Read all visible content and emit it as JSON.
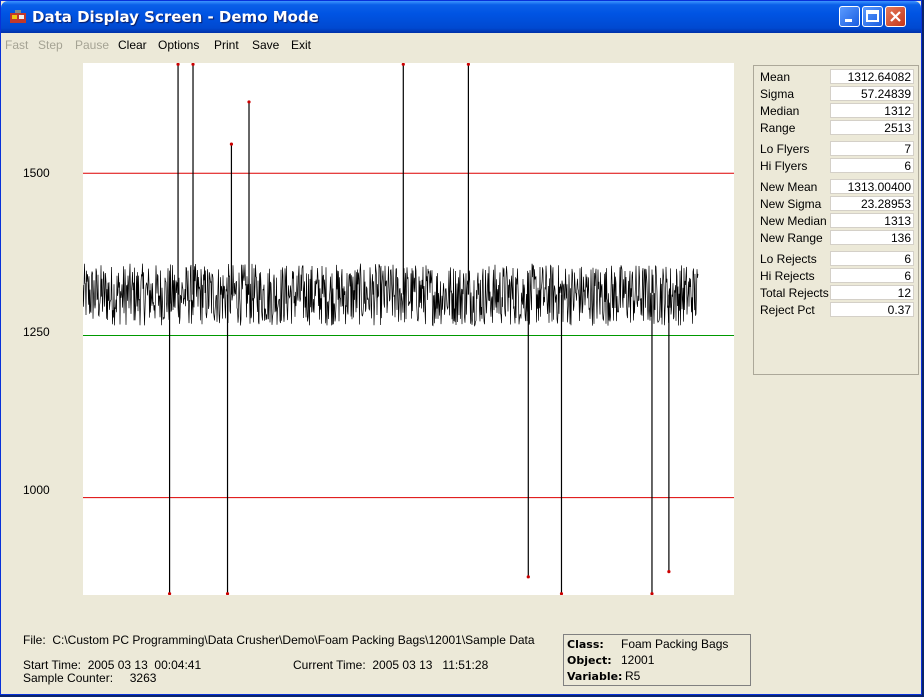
{
  "window": {
    "title": "Data Display Screen - Demo Mode"
  },
  "menu": {
    "fast": "Fast",
    "step": "Step",
    "pause": "Pause",
    "clear": "Clear",
    "options": "Options",
    "print": "Print",
    "save": "Save",
    "exit": "Exit"
  },
  "axis": {
    "y1500": "1500",
    "y1250": "1250",
    "y1000": "1000"
  },
  "stats": {
    "mean": {
      "label": "Mean",
      "value": "1312.64082"
    },
    "sigma": {
      "label": "Sigma",
      "value": "57.24839"
    },
    "median": {
      "label": "Median",
      "value": "1312"
    },
    "range": {
      "label": "Range",
      "value": "2513"
    },
    "lo_flyers": {
      "label": "Lo Flyers",
      "value": "7"
    },
    "hi_flyers": {
      "label": "Hi Flyers",
      "value": "6"
    },
    "new_mean": {
      "label": "New Mean",
      "value": "1313.00400"
    },
    "new_sigma": {
      "label": "New Sigma",
      "value": "23.28953"
    },
    "new_median": {
      "label": "New Median",
      "value": "1313"
    },
    "new_range": {
      "label": "New Range",
      "value": "136"
    },
    "lo_rejects": {
      "label": "Lo Rejects",
      "value": "6"
    },
    "hi_rejects": {
      "label": "Hi Rejects",
      "value": "6"
    },
    "total_rejects": {
      "label": "Total Rejects",
      "value": "12"
    },
    "reject_pct": {
      "label": "Reject Pct",
      "value": "0.37"
    }
  },
  "footer": {
    "file_label": "File:",
    "file_path": "C:\\Custom PC Programming\\Data Crusher\\Demo\\Foam Packing Bags\\12001\\Sample Data",
    "start_label": "Start Time:",
    "start_value": "2005 03 13  00:04:41",
    "current_label": "Current Time:",
    "current_value": "2005 03 13   11:51:28",
    "counter_label": "Sample Counter:",
    "counter_value": "3263"
  },
  "info": {
    "class_label": "Class:",
    "class_value": "Foam Packing Bags",
    "object_label": "Object:",
    "object_value": "12001",
    "variable_label": "Variable:",
    "variable_value": "R5"
  },
  "colors": {
    "upper_limit": "#dd0000",
    "lower_limit": "#dd0000",
    "center_line": "#009900",
    "trace": "#000000",
    "flyer_dot": "#cc0000"
  },
  "chart_data": {
    "type": "line",
    "ylim": [
      850,
      1670
    ],
    "reference_lines": [
      {
        "value": 1500,
        "color": "#dd0000"
      },
      {
        "value": 1250,
        "color": "#009900"
      },
      {
        "value": 1000,
        "color": "#dd0000"
      }
    ],
    "baseline": {
      "mean": 1313,
      "amplitude": 60
    },
    "hi_spikes": [
      {
        "x": 0.146,
        "value": 1668
      },
      {
        "x": 0.169,
        "value": 1668
      },
      {
        "x": 0.228,
        "value": 1545
      },
      {
        "x": 0.255,
        "value": 1610
      },
      {
        "x": 0.492,
        "value": 1668
      },
      {
        "x": 0.592,
        "value": 1668
      }
    ],
    "lo_spikes": [
      {
        "x": 0.133,
        "value": 852
      },
      {
        "x": 0.222,
        "value": 852
      },
      {
        "x": 0.684,
        "value": 878
      },
      {
        "x": 0.735,
        "value": 852
      },
      {
        "x": 0.874,
        "value": 852
      },
      {
        "x": 0.9,
        "value": 886
      }
    ]
  }
}
